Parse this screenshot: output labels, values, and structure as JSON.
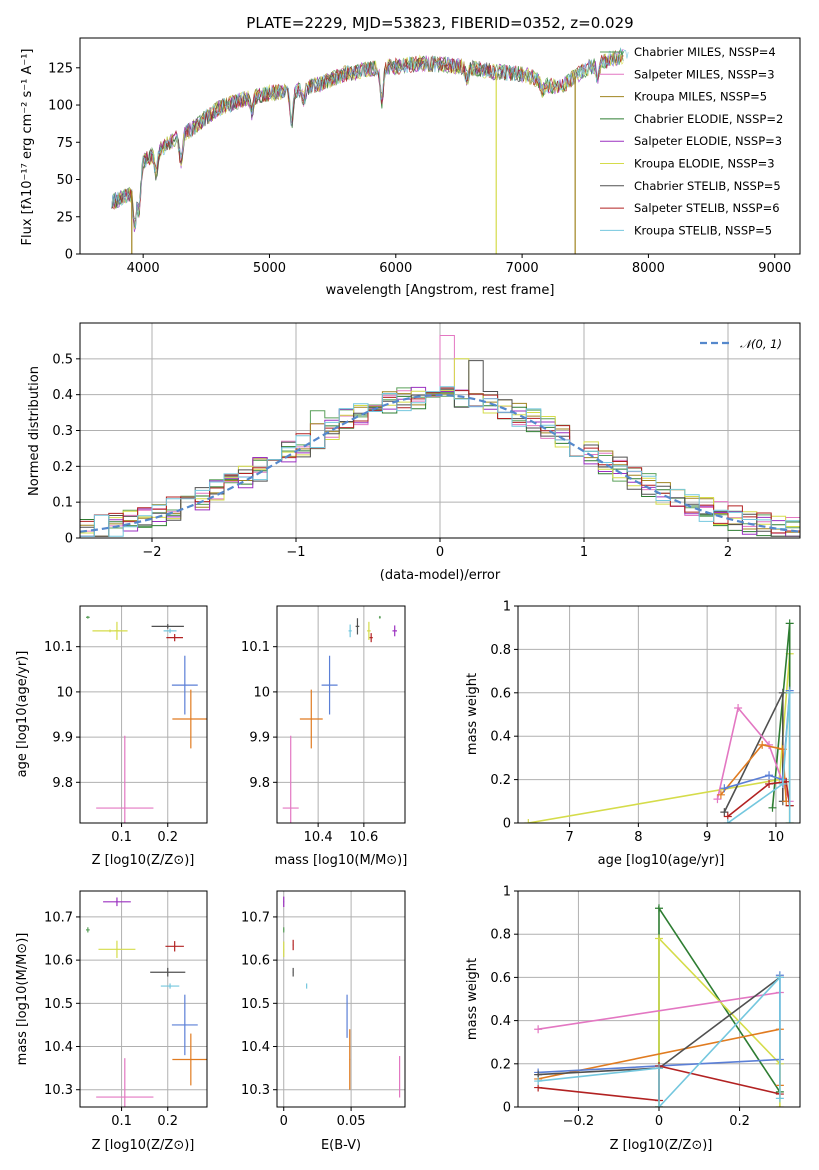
{
  "colors": {
    "Chabrier MILES": "#5aa05a",
    "Salpeter MILES": "#e377c2",
    "Kroupa MILES": "#a08420",
    "Chabrier ELODIE": "#2e7d32",
    "Salpeter ELODIE": "#9b30c0",
    "Kroupa ELODIE": "#d5dc4a",
    "Chabrier STELIB": "#505050",
    "Salpeter STELIB": "#b22222",
    "Kroupa STELIB": "#74c7de",
    "blue": "#5b7fd6",
    "orange": "#e07b20",
    "pink": "#e377c2",
    "normal": "#5588cc"
  },
  "chart_data": [
    {
      "type": "line",
      "title": "PLATE=2229, MJD=53823, FIBERID=0352, z=0.029",
      "xlabel": "wavelength [Angstrom, rest frame]",
      "ylabel": "Flux [fλ10⁻¹⁷ erg cm⁻² s⁻¹ A⁻¹]",
      "xlim": [
        3500,
        9200
      ],
      "ylim": [
        0,
        145
      ],
      "xticks": [
        4000,
        5000,
        6000,
        7000,
        8000,
        9000
      ],
      "yticks": [
        0,
        25,
        50,
        75,
        100,
        125
      ],
      "legend": "top-right",
      "series": [
        {
          "name": "Chabrier MILES, NSSP=4"
        },
        {
          "name": "Salpeter MILES, NSSP=3"
        },
        {
          "name": "Kroupa MILES, NSSP=5"
        },
        {
          "name": "Chabrier ELODIE, NSSP=2"
        },
        {
          "name": "Salpeter ELODIE, NSSP=3"
        },
        {
          "name": "Kroupa ELODIE, NSSP=3"
        },
        {
          "name": "Chabrier STELIB, NSSP=5"
        },
        {
          "name": "Salpeter STELIB, NSSP=6"
        },
        {
          "name": "Kroupa STELIB, NSSP=5"
        }
      ],
      "continuum": {
        "x": [
          3750,
          3900,
          4000,
          4200,
          4400,
          4600,
          4800,
          5000,
          5200,
          5400,
          5600,
          5800,
          6000,
          6200,
          6400,
          6600,
          6800,
          7000,
          7100,
          7200,
          7300,
          7400,
          7500,
          7600,
          7700,
          7800
        ],
        "y": [
          35,
          40,
          62,
          74,
          85,
          98,
          104,
          108,
          110,
          114,
          121,
          124,
          126,
          128,
          127,
          125,
          122,
          121,
          118,
          113,
          112,
          118,
          124,
          128,
          131,
          133
        ]
      },
      "drops": [
        {
          "series": "Kroupa MILES",
          "x": 3910
        },
        {
          "series": "Kroupa ELODIE",
          "x": 6795
        },
        {
          "series": "Kroupa MILES",
          "x": 7420
        }
      ]
    },
    {
      "type": "histogram",
      "xlabel": "(data-model)/error",
      "ylabel": "Normed distribution",
      "xlim": [
        -2.5,
        2.5
      ],
      "ylim": [
        0,
        0.6
      ],
      "xticks": [
        -2,
        -1,
        0,
        1,
        2
      ],
      "yticks": [
        0.0,
        0.1,
        0.2,
        0.3,
        0.4,
        0.5
      ],
      "legend": "top-right",
      "reference": {
        "name": "𝒩(0, 1)",
        "mean": 0,
        "sd": 1
      },
      "bin_width": 0.1,
      "highlights": [
        {
          "series": "Salpeter MILES",
          "x": 0.05,
          "y": 0.565
        },
        {
          "series": "Kroupa ELODIE",
          "x": 0.15,
          "y": 0.5
        },
        {
          "series": "Chabrier STELIB",
          "x": 0.25,
          "y": 0.495
        },
        {
          "series": "Chabrier MILES",
          "x": -0.85,
          "y": 0.355
        }
      ]
    },
    {
      "type": "scatter",
      "xlabel": "Z [log10(Z/Z⊙)]",
      "ylabel": "age  [log10(age/yr)]",
      "xlim": [
        0.01,
        0.285
      ],
      "ylim": [
        9.71,
        10.19
      ],
      "xticks": [
        0.1,
        0.2
      ],
      "yticks": [
        9.8,
        9.9,
        10.0,
        10.1
      ],
      "points": [
        {
          "c": "Chabrier MILES",
          "x": 0.027,
          "y": 10.165,
          "ex": 0.004,
          "ey": 0.003
        },
        {
          "c": "Kroupa ELODIE",
          "x": 0.075,
          "y": 10.135,
          "ex": 0.038,
          "ey": 0.003
        },
        {
          "c": "Kroupa ELODIE",
          "x": 0.09,
          "y": 10.135,
          "ex": 0.005,
          "ey": 0.02
        },
        {
          "c": "Chabrier STELIB",
          "x": 0.2,
          "y": 10.145,
          "ex": 0.035,
          "ey": 0.005
        },
        {
          "c": "Kroupa STELIB",
          "x": 0.205,
          "y": 10.135,
          "ex": 0.014,
          "ey": 0.005
        },
        {
          "c": "Salpeter STELIB",
          "x": 0.215,
          "y": 10.12,
          "ex": 0.018,
          "ey": 0.008
        },
        {
          "c": "blue",
          "x": 0.237,
          "y": 10.015,
          "ex": 0.028,
          "ey": 0.065
        },
        {
          "c": "orange",
          "x": 0.25,
          "y": 9.94,
          "ex": 0.04,
          "ey": 0.065
        },
        {
          "c": "pink",
          "x": 0.107,
          "y": 9.743,
          "ex": 0.062,
          "ey": 0.16
        }
      ]
    },
    {
      "type": "scatter",
      "xlabel": "mass [log10(M/M⊙)]",
      "xlim": [
        10.22,
        10.78
      ],
      "ylim": [
        9.71,
        10.19
      ],
      "xticks": [
        10.4,
        10.6
      ],
      "points": [
        {
          "c": "Chabrier MILES",
          "x": 10.67,
          "y": 10.165,
          "ex": 0.004,
          "ey": 0.003
        },
        {
          "c": "Salpeter ELODIE",
          "x": 10.735,
          "y": 10.135,
          "ex": 0.01,
          "ey": 0.012
        },
        {
          "c": "Kroupa ELODIE",
          "x": 10.622,
          "y": 10.135,
          "ex": 0.008,
          "ey": 0.02
        },
        {
          "c": "Chabrier STELIB",
          "x": 10.572,
          "y": 10.145,
          "ex": 0.008,
          "ey": 0.018
        },
        {
          "c": "Kroupa STELIB",
          "x": 10.54,
          "y": 10.135,
          "ex": 0.007,
          "ey": 0.014
        },
        {
          "c": "Salpeter STELIB",
          "x": 10.632,
          "y": 10.12,
          "ex": 0.007,
          "ey": 0.01
        },
        {
          "c": "blue",
          "x": 10.45,
          "y": 10.015,
          "ex": 0.035,
          "ey": 0.065
        },
        {
          "c": "orange",
          "x": 10.37,
          "y": 9.94,
          "ex": 0.05,
          "ey": 0.065
        },
        {
          "c": "pink",
          "x": 10.28,
          "y": 9.743,
          "ex": 0.035,
          "ey": 0.16
        }
      ]
    },
    {
      "type": "line",
      "xlabel": "age  [log10(age/yr)]",
      "ylabel": "mass weight",
      "xlim": [
        6.25,
        10.35
      ],
      "ylim": [
        0,
        1
      ],
      "xticks": [
        7,
        8,
        9,
        10
      ],
      "yticks": [
        0.0,
        0.2,
        0.4,
        0.6,
        0.8,
        1.0
      ],
      "series": [
        {
          "c": "Kroupa ELODIE",
          "x": [
            6.4,
            10.05,
            10.2,
            10.2
          ],
          "y": [
            0.0,
            0.2,
            0.78,
            0.0
          ]
        },
        {
          "c": "Chabrier ELODIE",
          "x": [
            9.95,
            10.2,
            10.2
          ],
          "y": [
            0.07,
            0.92,
            0.08
          ]
        },
        {
          "c": "Chabrier STELIB",
          "x": [
            9.25,
            10.1,
            10.1
          ],
          "y": [
            0.05,
            0.6,
            0.1
          ]
        },
        {
          "c": "pink",
          "x": [
            9.15,
            9.45,
            9.9,
            10.2
          ],
          "y": [
            0.11,
            0.53,
            0.36,
            0.1
          ]
        },
        {
          "c": "orange",
          "x": [
            9.2,
            9.8,
            10.1,
            10.15
          ],
          "y": [
            0.13,
            0.36,
            0.34,
            0.1
          ]
        },
        {
          "c": "blue",
          "x": [
            9.25,
            9.9,
            10.1,
            10.2
          ],
          "y": [
            0.16,
            0.22,
            0.2,
            0.61
          ]
        },
        {
          "c": "Salpeter STELIB",
          "x": [
            9.3,
            9.9,
            10.15,
            10.2
          ],
          "y": [
            0.03,
            0.18,
            0.19,
            0.08
          ]
        },
        {
          "c": "Kroupa STELIB",
          "x": [
            9.3,
            10.1,
            10.2,
            10.2
          ],
          "y": [
            0.0,
            0.18,
            0.6,
            0.0
          ]
        }
      ]
    },
    {
      "type": "scatter",
      "xlabel": "Z [log10(Z/Z⊙)]",
      "ylabel": "mass [log10(M/M⊙)]",
      "xlim": [
        0.01,
        0.285
      ],
      "ylim": [
        10.26,
        10.76
      ],
      "xticks": [
        0.1,
        0.2
      ],
      "yticks": [
        10.3,
        10.4,
        10.5,
        10.6,
        10.7
      ],
      "points": [
        {
          "c": "Salpeter ELODIE",
          "x": 0.09,
          "y": 10.735,
          "ex": 0.03,
          "ey": 0.01
        },
        {
          "c": "Chabrier MILES",
          "x": 0.027,
          "y": 10.67,
          "ex": 0.004,
          "ey": 0.006
        },
        {
          "c": "Kroupa ELODIE",
          "x": 0.09,
          "y": 10.625,
          "ex": 0.04,
          "ey": 0.02
        },
        {
          "c": "Salpeter STELIB",
          "x": 0.215,
          "y": 10.632,
          "ex": 0.02,
          "ey": 0.012
        },
        {
          "c": "Chabrier STELIB",
          "x": 0.2,
          "y": 10.572,
          "ex": 0.038,
          "ey": 0.01
        },
        {
          "c": "Kroupa STELIB",
          "x": 0.205,
          "y": 10.54,
          "ex": 0.02,
          "ey": 0.006
        },
        {
          "c": "blue",
          "x": 0.237,
          "y": 10.45,
          "ex": 0.028,
          "ey": 0.07
        },
        {
          "c": "orange",
          "x": 0.25,
          "y": 10.37,
          "ex": 0.04,
          "ey": 0.06
        },
        {
          "c": "pink",
          "x": 0.107,
          "y": 10.283,
          "ex": 0.062,
          "ey": 0.09
        }
      ]
    },
    {
      "type": "scatter",
      "xlabel": "E(B-V)",
      "xlim": [
        -0.005,
        0.09
      ],
      "ylim": [
        10.26,
        10.76
      ],
      "xticks": [
        0.0,
        0.05
      ],
      "points": [
        {
          "c": "Salpeter ELODIE",
          "x": 0.0,
          "y": 10.735,
          "ex": 0.0003,
          "ey": 0.012
        },
        {
          "c": "Chabrier MILES",
          "x": 0.0,
          "y": 10.67,
          "ex": 0.0003,
          "ey": 0.006
        },
        {
          "c": "Kroupa ELODIE",
          "x": 0.0,
          "y": 10.625,
          "ex": 0.0003,
          "ey": 0.018
        },
        {
          "c": "Salpeter STELIB",
          "x": 0.007,
          "y": 10.635,
          "ex": 0.0003,
          "ey": 0.012
        },
        {
          "c": "Chabrier STELIB",
          "x": 0.007,
          "y": 10.572,
          "ex": 0.0003,
          "ey": 0.01
        },
        {
          "c": "Kroupa STELIB",
          "x": 0.017,
          "y": 10.54,
          "ex": 0.0003,
          "ey": 0.006
        },
        {
          "c": "blue",
          "x": 0.047,
          "y": 10.47,
          "ex": 0.0003,
          "ey": 0.05
        },
        {
          "c": "orange",
          "x": 0.049,
          "y": 10.37,
          "ex": 0.0003,
          "ey": 0.07
        },
        {
          "c": "pink",
          "x": 0.086,
          "y": 10.33,
          "ex": 0.0003,
          "ey": 0.048
        }
      ]
    },
    {
      "type": "line",
      "xlabel": "Z [log10(Z/Z⊙)]",
      "ylabel": "mass weight",
      "xlim": [
        -0.35,
        0.35
      ],
      "ylim": [
        0,
        1
      ],
      "xticks": [
        -0.2,
        0.0,
        0.2
      ],
      "yticks": [
        0.0,
        0.2,
        0.4,
        0.6,
        0.8,
        1.0
      ],
      "series": [
        {
          "c": "Chabrier ELODIE",
          "x": [
            0.0,
            0.0,
            0.3
          ],
          "y": [
            0.0,
            0.92,
            0.07
          ]
        },
        {
          "c": "Kroupa ELODIE",
          "x": [
            0.0,
            0.0,
            0.3,
            0.3
          ],
          "y": [
            0.0,
            0.78,
            0.2,
            0.0
          ]
        },
        {
          "c": "pink",
          "x": [
            -0.3,
            0.3
          ],
          "y": [
            0.36,
            0.53
          ]
        },
        {
          "c": "orange",
          "x": [
            -0.3,
            0.3,
            0.3
          ],
          "y": [
            0.13,
            0.36,
            0.1
          ]
        },
        {
          "c": "blue",
          "x": [
            -0.3,
            0.3,
            0.3
          ],
          "y": [
            0.16,
            0.22,
            0.61
          ]
        },
        {
          "c": "Chabrier STELIB",
          "x": [
            -0.3,
            0.0,
            0.3
          ],
          "y": [
            0.15,
            0.18,
            0.6
          ]
        },
        {
          "c": "Salpeter STELIB",
          "x": [
            -0.3,
            0.0,
            0.0,
            0.3
          ],
          "y": [
            0.09,
            0.03,
            0.19,
            0.06
          ]
        },
        {
          "c": "Kroupa STELIB",
          "x": [
            -0.3,
            0.0,
            0.0,
            0.3,
            0.3
          ],
          "y": [
            0.12,
            0.18,
            0.0,
            0.6,
            0.04
          ]
        }
      ]
    }
  ]
}
